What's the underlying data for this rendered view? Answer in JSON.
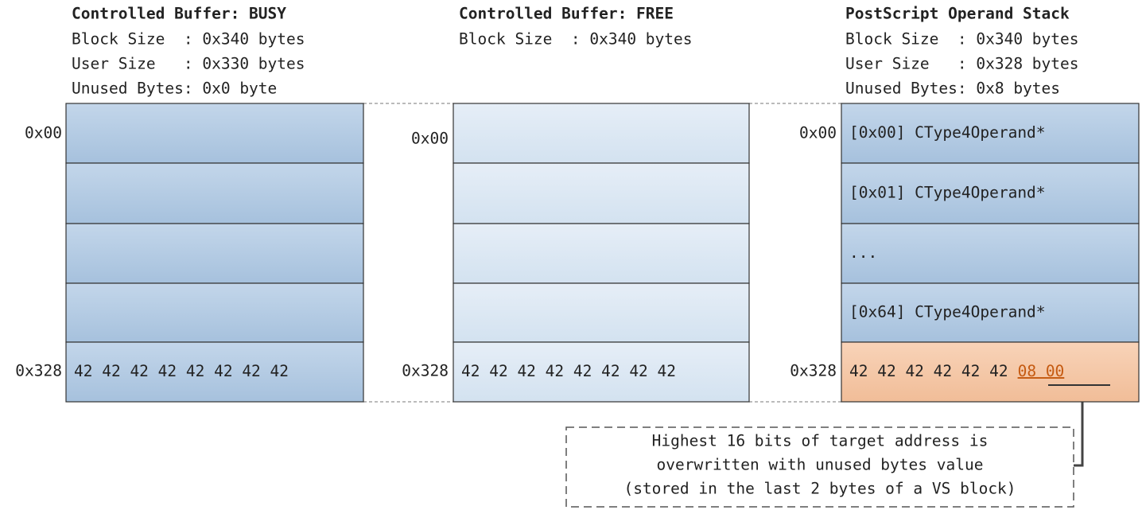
{
  "columns": [
    {
      "title": "Controlled Buffer: BUSY",
      "lines": [
        "Block Size  : 0x340 bytes",
        "User Size   : 0x330 bytes",
        "Unused Bytes: 0x0 byte"
      ],
      "offsets": [
        "0x00",
        "0x328"
      ],
      "last_cell": {
        "bytes": "42 42 42 42 42 42 42 42"
      }
    },
    {
      "title": "Controlled Buffer: FREE",
      "lines": [
        "Block Size  : 0x340 bytes"
      ],
      "offsets": [
        "0x00",
        "0x328"
      ],
      "last_cell": {
        "bytes": "42 42 42 42 42 42 42 42"
      }
    },
    {
      "title": "PostScript Operand Stack",
      "lines": [
        "Block Size  : 0x340 bytes",
        "User Size   : 0x328 bytes",
        "Unused Bytes: 0x8 bytes"
      ],
      "offsets": [
        "0x00",
        "0x328"
      ],
      "cells": [
        "[0x00] CType4Operand*",
        "[0x01] CType4Operand*",
        "...",
        "[0x64] CType4Operand*"
      ],
      "last_cell": {
        "bytes": "42 42 42 42 42 42",
        "unused": "08 00"
      }
    }
  ],
  "callout": {
    "lines": [
      "Highest 16 bits of target address is",
      "overwritten with unused bytes value",
      "(stored in the last 2 bytes of a VS block)"
    ]
  }
}
